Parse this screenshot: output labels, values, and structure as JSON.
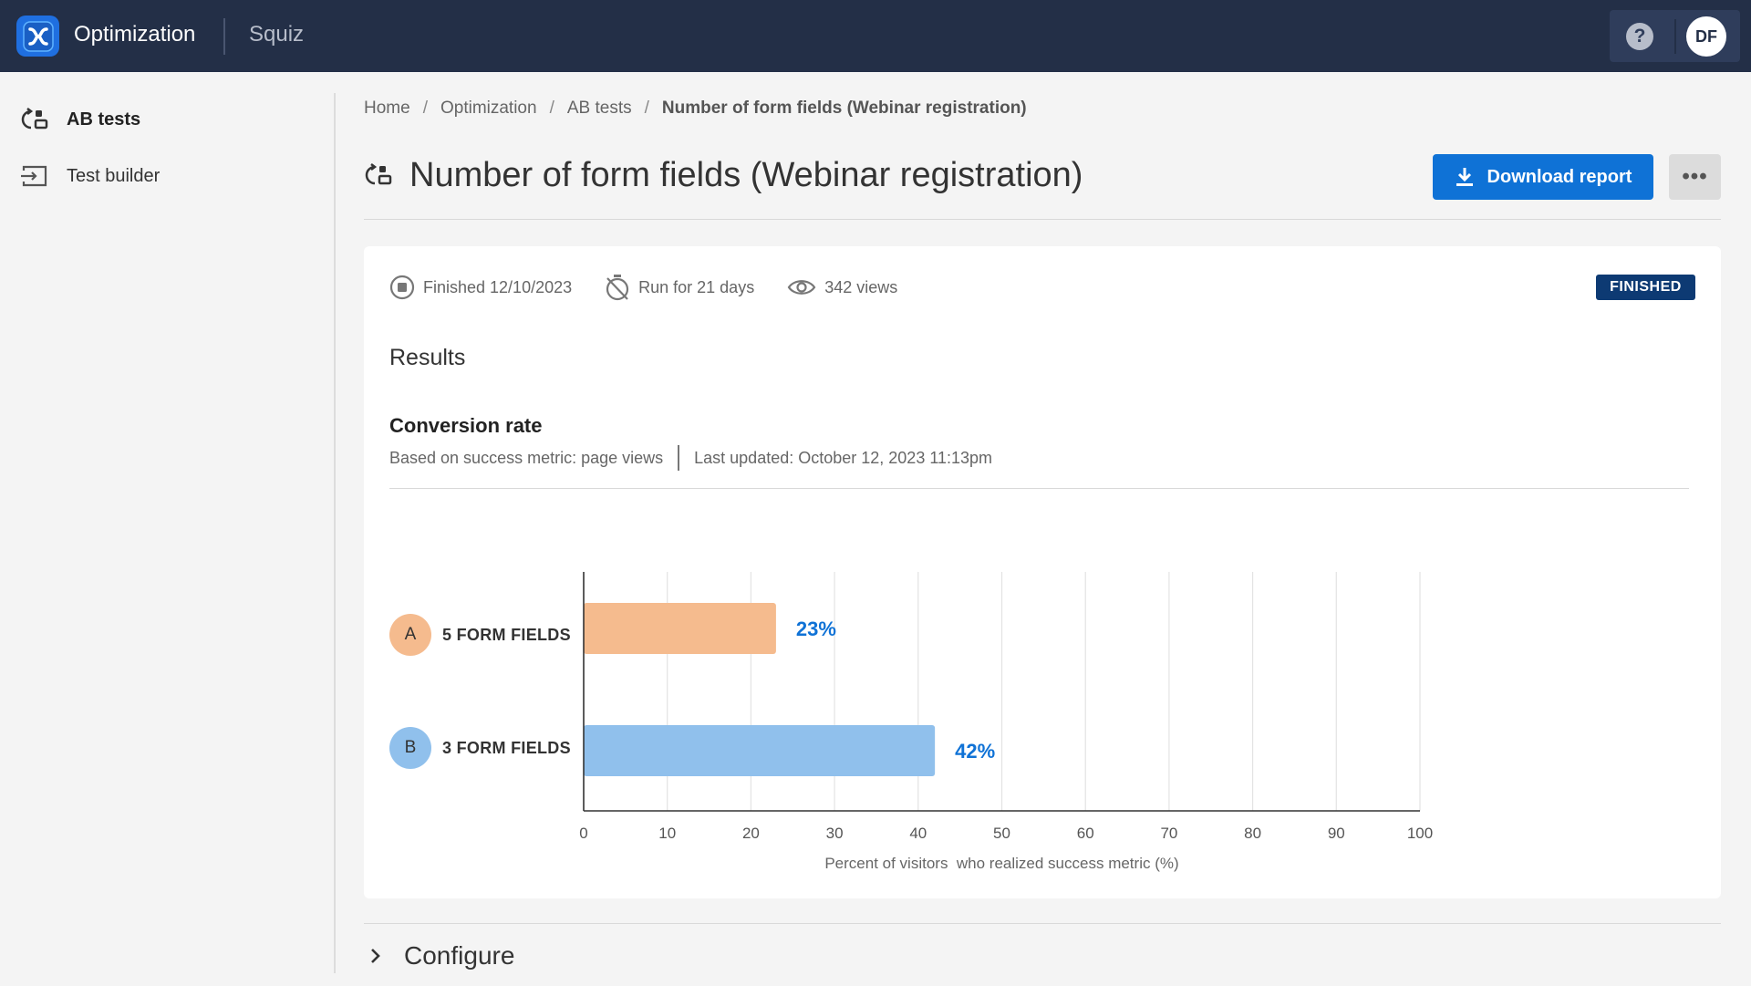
{
  "topbar": {
    "app_name": "Optimization",
    "org_name": "Squiz",
    "help_label": "?",
    "avatar_initials": "DF"
  },
  "sidebar": {
    "items": [
      {
        "label": "AB tests",
        "icon": "ab-test-icon",
        "active": true
      },
      {
        "label": "Test builder",
        "icon": "test-builder-icon",
        "active": false
      }
    ]
  },
  "breadcrumb": {
    "items": [
      "Home",
      "Optimization",
      "AB tests"
    ],
    "current": "Number of form fields (Webinar registration)",
    "separator": "/"
  },
  "page": {
    "title": "Number of form fields (Webinar registration)",
    "download_label": "Download report",
    "more_label": "•••"
  },
  "card": {
    "finished": "Finished 12/10/2023",
    "run_for": "Run for 21 days",
    "views": "342 views",
    "status": "FINISHED",
    "results_title": "Results",
    "metric_title": "Conversion rate",
    "metric_basis": "Based on success metric: page views",
    "last_updated": "Last updated: October 12, 2023 11:13pm"
  },
  "chart_data": {
    "type": "bar",
    "orientation": "horizontal",
    "categories": [
      "5 FORM FIELDS",
      "3 FORM FIELDS"
    ],
    "variant_letters": [
      "A",
      "B"
    ],
    "values": [
      23,
      42
    ],
    "value_labels": [
      "23%",
      "42%"
    ],
    "colors": [
      "#f5bb8e",
      "#90c0ec"
    ],
    "badge_colors": [
      "#f5bb8e",
      "#90c0ec"
    ],
    "xlabel": "Percent of visitors  who realized success metric (%)",
    "xlim": [
      0,
      100
    ],
    "xticks": [
      0,
      10,
      20,
      30,
      40,
      50,
      60,
      70,
      80,
      90,
      100
    ],
    "grid": true,
    "label_color": "#0f72d6"
  },
  "configure": {
    "label": "Configure"
  },
  "colors": {
    "topbar_bg": "#232f47",
    "accent": "#0f72d6",
    "status_badge": "#0d3a73"
  }
}
